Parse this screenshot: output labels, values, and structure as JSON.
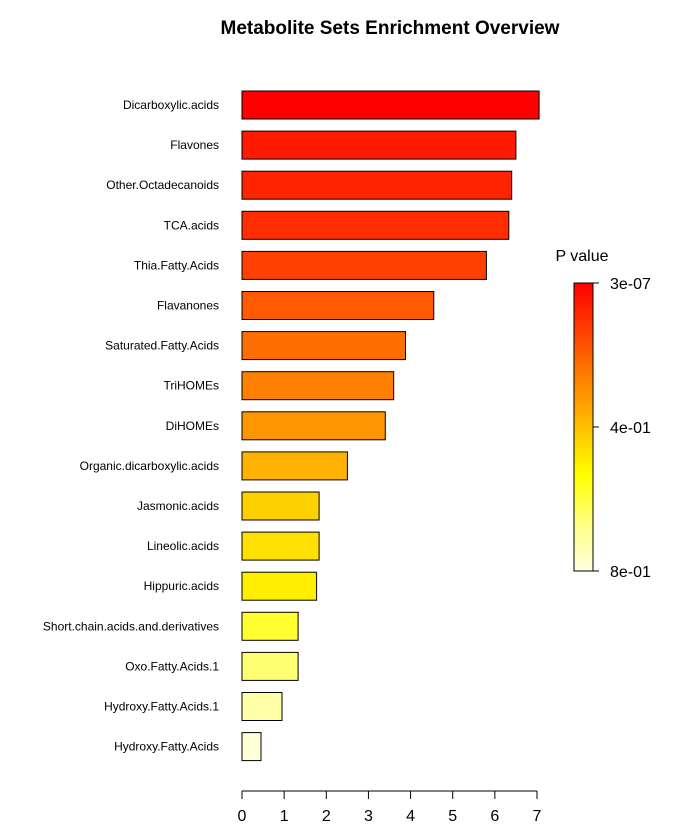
{
  "chart_data": {
    "type": "bar",
    "orientation": "horizontal",
    "title": "Metabolite Sets Enrichment Overview",
    "xlabel": "",
    "ylabel": "",
    "xlim": [
      0,
      7
    ],
    "x_ticks": [
      "0",
      "1",
      "2",
      "3",
      "4",
      "5",
      "6",
      "7"
    ],
    "grid": false,
    "categories": [
      "Dicarboxylic.acids",
      "Flavones",
      "Other.Octadecanoids",
      "TCA.acids",
      "Thia.Fatty.Acids",
      "Flavanones",
      "Saturated.Fatty.Acids",
      "TriHOMEs",
      "DiHOMEs",
      "Organic.dicarboxylic.acids",
      "Jasmonic.acids",
      "Lineolic.acids",
      "Hippuric.acids",
      "Short.chain.acids.and.derivatives",
      "Oxo.Fatty.Acids.1",
      "Hydroxy.Fatty.Acids.1",
      "Hydroxy.Fatty.Acids"
    ],
    "values": [
      7.05,
      6.5,
      6.4,
      6.33,
      5.8,
      4.55,
      3.88,
      3.6,
      3.4,
      2.5,
      1.83,
      1.83,
      1.77,
      1.33,
      1.33,
      0.95,
      0.45
    ],
    "bar_colors": [
      "#ff0000",
      "#ff1a00",
      "#ff2400",
      "#ff2d00",
      "#ff4000",
      "#ff5a00",
      "#ff6e00",
      "#ff8000",
      "#ff9500",
      "#ffb200",
      "#ffd000",
      "#ffe000",
      "#ffee00",
      "#ffff30",
      "#ffff70",
      "#ffffa8",
      "#ffffd8"
    ],
    "legend": {
      "title": "P value",
      "placement": "right",
      "labels": [
        "3e-07",
        "4e-01",
        "8e-01"
      ],
      "gradient_colors": [
        "#ff0000",
        "#ff4000",
        "#ff8000",
        "#ffc000",
        "#ffff00",
        "#ffff80",
        "#ffffe0"
      ]
    }
  }
}
